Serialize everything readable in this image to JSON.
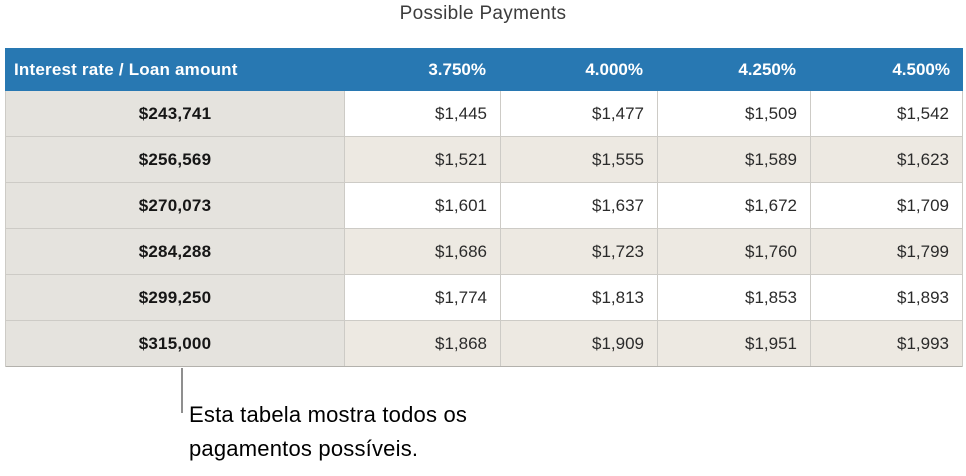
{
  "title": "Possible Payments",
  "table": {
    "header": [
      "Interest rate / Loan amount",
      "3.750%",
      "4.000%",
      "4.250%",
      "4.500%"
    ],
    "rows": [
      {
        "loan": "$243,741",
        "payments": [
          "$1,445",
          "$1,477",
          "$1,509",
          "$1,542"
        ]
      },
      {
        "loan": "$256,569",
        "payments": [
          "$1,521",
          "$1,555",
          "$1,589",
          "$1,623"
        ]
      },
      {
        "loan": "$270,073",
        "payments": [
          "$1,601",
          "$1,637",
          "$1,672",
          "$1,709"
        ]
      },
      {
        "loan": "$284,288",
        "payments": [
          "$1,686",
          "$1,723",
          "$1,760",
          "$1,799"
        ]
      },
      {
        "loan": "$299,250",
        "payments": [
          "$1,774",
          "$1,813",
          "$1,853",
          "$1,893"
        ]
      },
      {
        "loan": "$315,000",
        "payments": [
          "$1,868",
          "$1,909",
          "$1,951",
          "$1,993"
        ]
      }
    ]
  },
  "callout": {
    "lines": [
      "Esta tabela mostra todos os",
      "pagamentos possíveis."
    ]
  },
  "colors": {
    "header_bg": "#2878b2",
    "header_text": "#ffffff",
    "loan_column_bg": "#e5e3de",
    "row_bg": "#ffffff",
    "row_alt_bg": "#ede9e2",
    "grid_border": "#cdcbc6",
    "table_bottom_border": "#b3b1ac",
    "callout_line": "#8f8f8f",
    "title_text": "#3c3c3c",
    "value_text": "#2b2b2b",
    "loan_text": "#161616"
  }
}
